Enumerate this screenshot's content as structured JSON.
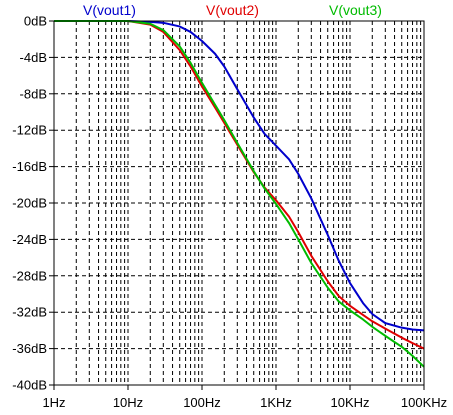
{
  "chart_data": {
    "type": "line",
    "x_scale": "log",
    "xlim": [
      1,
      100000
    ],
    "ylim": [
      -40,
      0
    ],
    "grid": true,
    "legend": "top",
    "x_ticks": [
      {
        "value": 1,
        "label": "1Hz"
      },
      {
        "value": 10,
        "label": "10Hz"
      },
      {
        "value": 100,
        "label": "100Hz"
      },
      {
        "value": 1000,
        "label": "1KHz"
      },
      {
        "value": 10000,
        "label": "10KHz"
      },
      {
        "value": 100000,
        "label": "100KHz"
      }
    ],
    "y_ticks": [
      {
        "value": 0,
        "label": "0dB"
      },
      {
        "value": -4,
        "label": "-4dB"
      },
      {
        "value": -8,
        "label": "-8dB"
      },
      {
        "value": -12,
        "label": "-12dB"
      },
      {
        "value": -16,
        "label": "-16dB"
      },
      {
        "value": -20,
        "label": "-20dB"
      },
      {
        "value": -24,
        "label": "-24dB"
      },
      {
        "value": -28,
        "label": "-28dB"
      },
      {
        "value": -32,
        "label": "-32dB"
      },
      {
        "value": -36,
        "label": "-36dB"
      },
      {
        "value": -40,
        "label": "-40dB"
      }
    ],
    "series": [
      {
        "name": "V(vout1)",
        "color": "#0000cc",
        "x": [
          1,
          2,
          5,
          10,
          20,
          30,
          50,
          70,
          100,
          150,
          200,
          300,
          500,
          700,
          1000,
          1500,
          2000,
          3000,
          5000,
          7000,
          10000,
          15000,
          20000,
          30000,
          50000,
          70000,
          100000
        ],
        "y": [
          0,
          0,
          0,
          0,
          -0.1,
          -0.2,
          -0.6,
          -1.2,
          -2.2,
          -3.6,
          -5,
          -7.5,
          -10.6,
          -12.4,
          -13.7,
          -15.2,
          -16.8,
          -19.5,
          -23.5,
          -26.3,
          -28.8,
          -31,
          -32.2,
          -33.2,
          -33.7,
          -33.9,
          -34
        ]
      },
      {
        "name": "V(vout2)",
        "color": "#e00000",
        "x": [
          1,
          2,
          5,
          10,
          20,
          30,
          50,
          70,
          100,
          150,
          200,
          300,
          500,
          700,
          1000,
          1500,
          2000,
          3000,
          5000,
          7000,
          10000,
          15000,
          20000,
          30000,
          50000,
          70000,
          100000
        ],
        "y": [
          0,
          0,
          0,
          0,
          -0.4,
          -1.2,
          -3.2,
          -5,
          -7.2,
          -9.5,
          -11.2,
          -13.6,
          -16.6,
          -18.3,
          -19.7,
          -21.5,
          -23.2,
          -25.8,
          -28.6,
          -30.2,
          -31.3,
          -32.3,
          -33,
          -33.8,
          -34.8,
          -35.4,
          -36
        ]
      },
      {
        "name": "V(vout3)",
        "color": "#00bb00",
        "x": [
          1,
          2,
          5,
          10,
          20,
          30,
          50,
          70,
          100,
          150,
          200,
          300,
          500,
          700,
          1000,
          1500,
          2000,
          3000,
          5000,
          7000,
          10000,
          15000,
          20000,
          30000,
          50000,
          70000,
          100000
        ],
        "y": [
          0,
          0,
          0,
          0,
          -0.3,
          -1,
          -2.8,
          -4.6,
          -6.8,
          -9.2,
          -10.9,
          -13.4,
          -16.5,
          -18.4,
          -20.1,
          -22.2,
          -24,
          -26.6,
          -29.3,
          -30.8,
          -31.8,
          -32.8,
          -33.6,
          -34.6,
          -35.8,
          -36.8,
          -38
        ]
      }
    ]
  }
}
